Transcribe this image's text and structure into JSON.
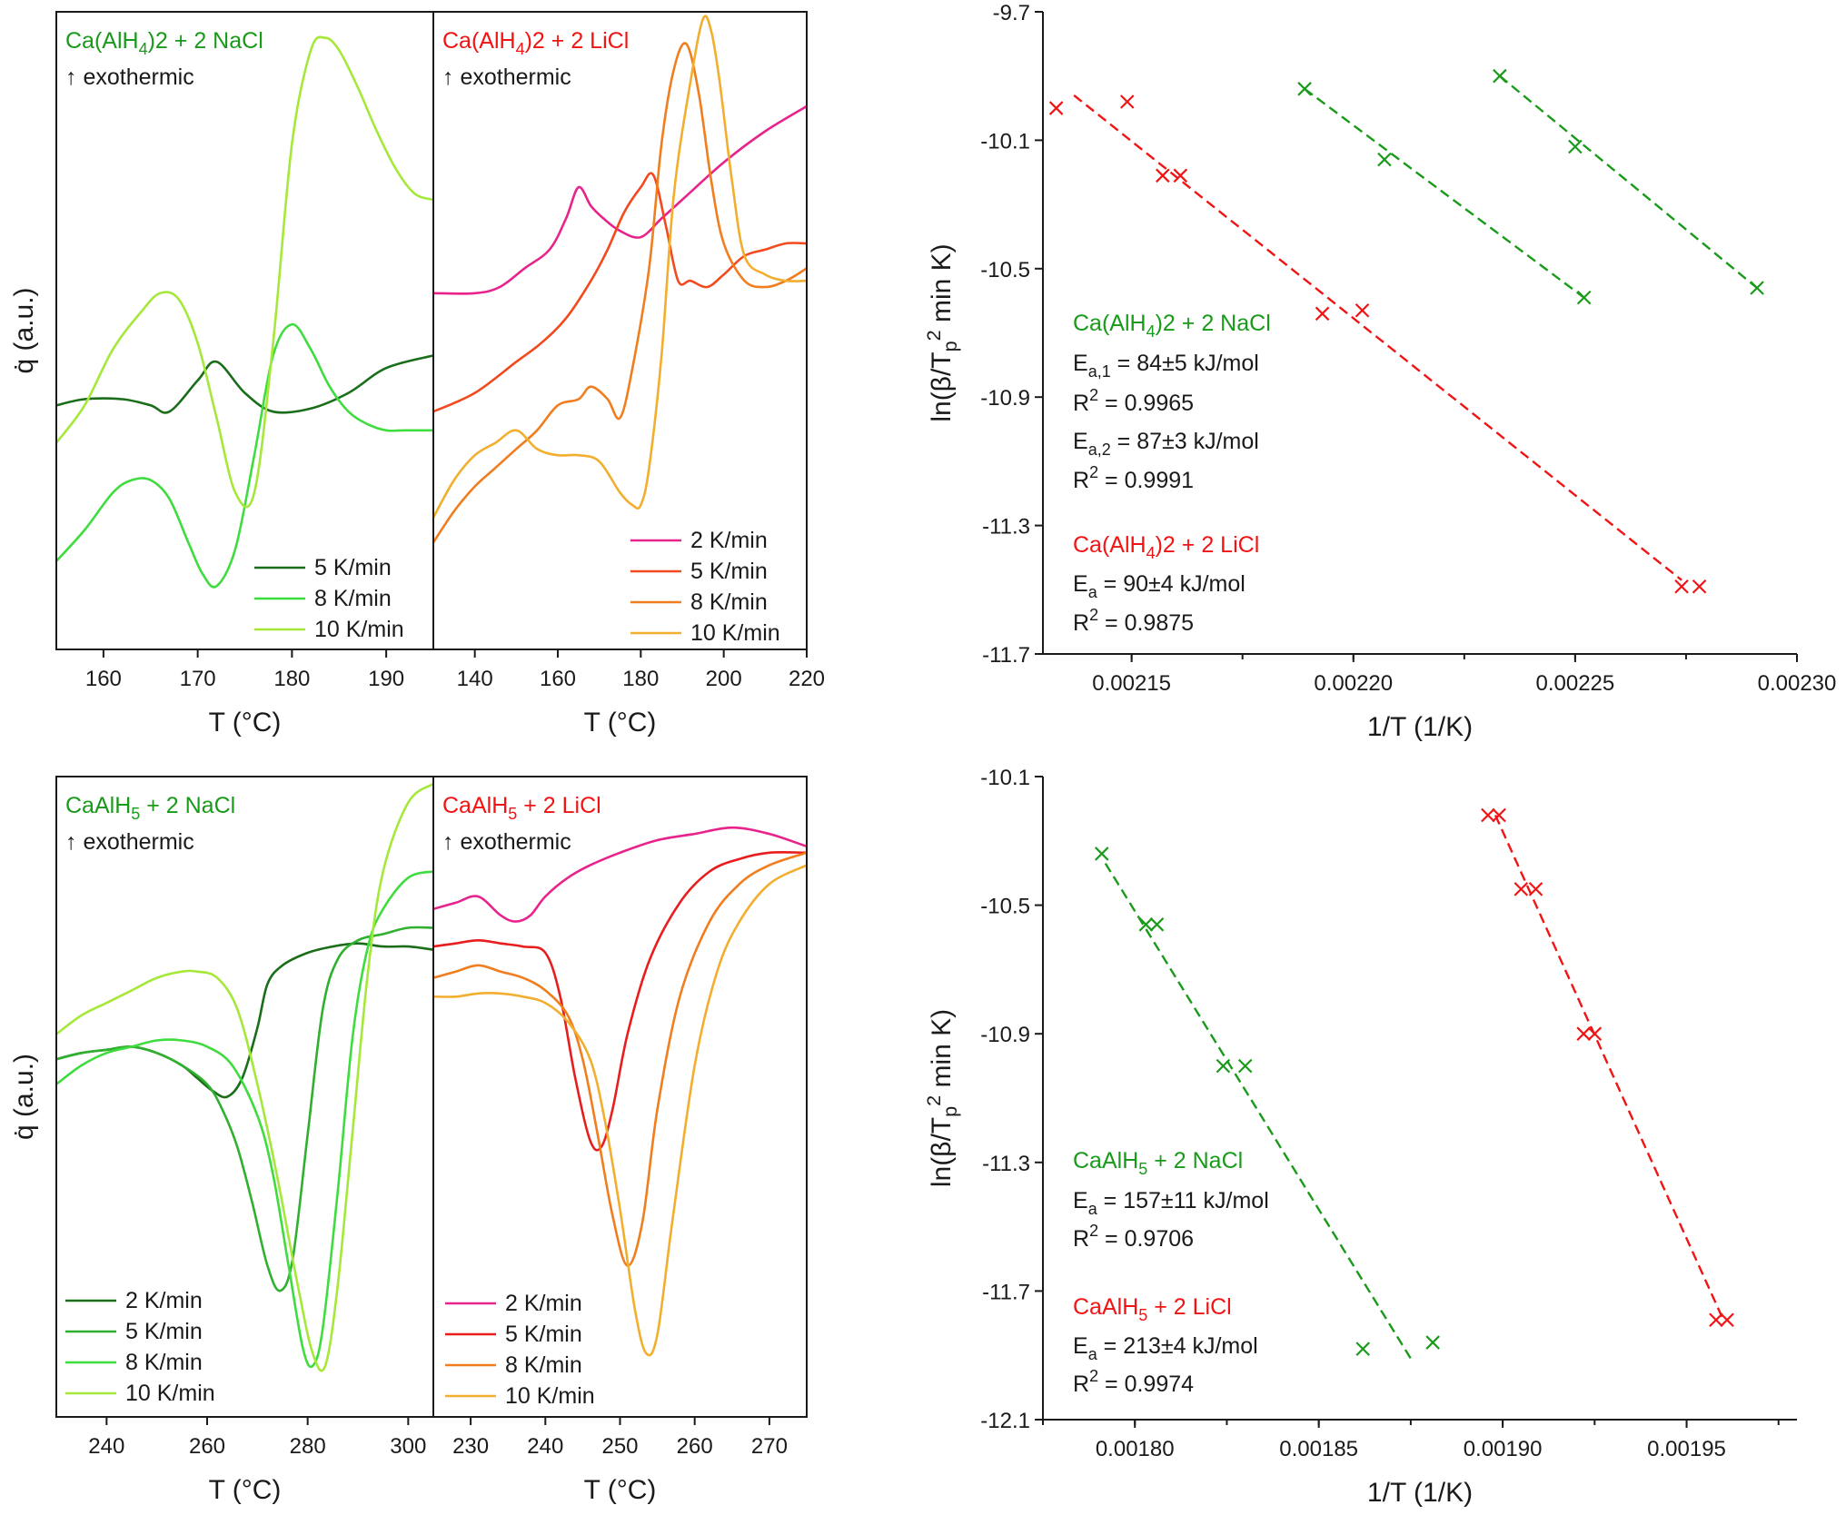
{
  "colors": {
    "green": "#1a9a1a",
    "red": "#f01414",
    "dark_green": "#1a6e1a",
    "mid_green": "#2fb02f",
    "bright_green": "#3fdc3f",
    "light_green": "#a6e83a",
    "magenta": "#e8238c",
    "orange": "#f07d1e",
    "gold": "#f2ae2e"
  },
  "chart_data": [
    {
      "id": "top-left-nacl",
      "type": "line",
      "title": "Ca(AlH4)2 + 2 NaCl",
      "annotation": "↑ exothermic",
      "xlabel": "T (°C)",
      "ylabel": "q̇ (a.u.)",
      "xlim": [
        155,
        195
      ],
      "ylim": [
        0,
        1
      ],
      "xticks": [
        160,
        170,
        180,
        190
      ],
      "series": [
        {
          "name": "5 K/min",
          "color": "#1a6e1a",
          "x": [
            155,
            158,
            162,
            165,
            167,
            170,
            172,
            175,
            178,
            182,
            186,
            190,
            195
          ],
          "y": [
            0.38,
            0.39,
            0.39,
            0.38,
            0.37,
            0.42,
            0.45,
            0.4,
            0.37,
            0.375,
            0.4,
            0.44,
            0.46
          ]
        },
        {
          "name": "8 K/min",
          "color": "#3fdc3f",
          "x": [
            155,
            158,
            161,
            163,
            165,
            167,
            169,
            170.5,
            172,
            174,
            176,
            178,
            180,
            182,
            184,
            186,
            188,
            190,
            192,
            195
          ],
          "y": [
            0.13,
            0.18,
            0.24,
            0.26,
            0.26,
            0.23,
            0.16,
            0.11,
            0.09,
            0.15,
            0.3,
            0.46,
            0.51,
            0.47,
            0.41,
            0.37,
            0.35,
            0.34,
            0.34,
            0.34
          ]
        },
        {
          "name": "10 K/min",
          "color": "#a6e83a",
          "x": [
            155,
            158,
            161,
            164,
            166,
            168,
            170,
            172,
            174,
            176,
            178,
            180,
            182,
            183.5,
            185,
            187,
            189,
            191,
            193,
            195
          ],
          "y": [
            0.32,
            0.38,
            0.47,
            0.53,
            0.56,
            0.55,
            0.48,
            0.36,
            0.24,
            0.24,
            0.48,
            0.8,
            0.95,
            0.97,
            0.95,
            0.89,
            0.82,
            0.76,
            0.72,
            0.71
          ]
        }
      ]
    },
    {
      "id": "top-mid-licl",
      "type": "line",
      "title": "Ca(AlH4)2 + 2 LiCl",
      "annotation": "↑ exothermic",
      "xlabel": "T (°C)",
      "xlim": [
        130,
        220
      ],
      "ylim": [
        0,
        1
      ],
      "xticks": [
        140,
        160,
        180,
        200,
        220
      ],
      "series": [
        {
          "name": "2 K/min",
          "color": "#e8238c",
          "x": [
            130,
            140,
            146,
            152,
            158,
            162,
            165,
            168,
            171,
            175,
            180,
            185,
            190,
            200,
            210,
            220
          ],
          "y": [
            0.56,
            0.56,
            0.57,
            0.6,
            0.63,
            0.68,
            0.73,
            0.7,
            0.68,
            0.66,
            0.65,
            0.68,
            0.71,
            0.77,
            0.82,
            0.86
          ]
        },
        {
          "name": "5 K/min",
          "color": "#f24a1e",
          "x": [
            130,
            140,
            150,
            156,
            162,
            168,
            172,
            176,
            180,
            183,
            186,
            189,
            192,
            196,
            200,
            205,
            210,
            215,
            220
          ],
          "y": [
            0.37,
            0.4,
            0.45,
            0.48,
            0.52,
            0.58,
            0.63,
            0.69,
            0.73,
            0.75,
            0.67,
            0.58,
            0.58,
            0.57,
            0.59,
            0.62,
            0.63,
            0.64,
            0.64
          ]
        },
        {
          "name": "8 K/min",
          "color": "#f07d1e",
          "x": [
            130,
            135,
            140,
            145,
            150,
            155,
            160,
            165,
            168,
            172,
            175,
            178,
            182,
            185,
            188,
            191,
            194,
            197,
            200,
            205,
            210,
            215,
            220
          ],
          "y": [
            0.16,
            0.21,
            0.25,
            0.28,
            0.31,
            0.34,
            0.38,
            0.39,
            0.41,
            0.39,
            0.36,
            0.44,
            0.6,
            0.8,
            0.92,
            0.96,
            0.88,
            0.74,
            0.64,
            0.58,
            0.57,
            0.58,
            0.6
          ]
        },
        {
          "name": "10 K/min",
          "color": "#f2ae2e",
          "x": [
            130,
            135,
            140,
            145,
            150,
            155,
            160,
            165,
            170,
            175,
            178,
            180,
            182,
            185,
            188,
            192,
            195,
            197,
            199,
            202,
            205,
            210,
            215,
            220
          ],
          "y": [
            0.2,
            0.26,
            0.3,
            0.32,
            0.34,
            0.31,
            0.3,
            0.3,
            0.29,
            0.24,
            0.22,
            0.22,
            0.28,
            0.46,
            0.72,
            0.9,
            1.0,
            0.98,
            0.9,
            0.74,
            0.62,
            0.59,
            0.58,
            0.58
          ]
        }
      ]
    },
    {
      "id": "top-right-kissinger",
      "type": "scatter",
      "xlabel": "1/T (1/K)",
      "ylabel": "ln(β/Tp² min K)",
      "xlim": [
        0.00213,
        0.0023
      ],
      "ylim": [
        -11.7,
        -9.7
      ],
      "xticks": [
        "0.00215",
        "0.00220",
        "0.00225",
        "0.00230"
      ],
      "yticks": [
        "-9.7",
        "-10.1",
        "-10.5",
        "-10.9",
        "-11.3",
        "-11.7"
      ],
      "series": [
        {
          "name": "Ca(AlH4)2 + 2 NaCl, peak 1",
          "color": "#1a9a1a",
          "points": [
            [
              0.002189,
              -9.94
            ],
            [
              0.002207,
              -10.16
            ],
            [
              0.002252,
              -10.59
            ]
          ],
          "fit": [
            [
              0.002189,
              -9.94
            ],
            [
              0.002252,
              -10.59
            ]
          ]
        },
        {
          "name": "Ca(AlH4)2 + 2 NaCl, peak 2",
          "color": "#1a9a1a",
          "points": [
            [
              0.002233,
              -9.9
            ],
            [
              0.00225,
              -10.12
            ],
            [
              0.002291,
              -10.56
            ]
          ],
          "fit": [
            [
              0.002233,
              -9.9
            ],
            [
              0.002291,
              -10.56
            ]
          ]
        },
        {
          "name": "Ca(AlH4)2 + 2 LiCl",
          "color": "#f01414",
          "points": [
            [
              0.002133,
              -10.0
            ],
            [
              0.002149,
              -9.98
            ],
            [
              0.002157,
              -10.21
            ],
            [
              0.002161,
              -10.21
            ],
            [
              0.002193,
              -10.64
            ],
            [
              0.002202,
              -10.63
            ],
            [
              0.002274,
              -11.49
            ],
            [
              0.002278,
              -11.49
            ]
          ],
          "fit": [
            [
              0.002137,
              -9.96
            ],
            [
              0.002274,
              -11.47
            ]
          ]
        }
      ],
      "legend": {
        "nacl_title": "Ca(AlH4)2 + 2 NaCl",
        "nacl_ea1": "Ea,1 = 84±5 kJ/mol",
        "nacl_r1": "R² = 0.9965",
        "nacl_ea2": "Ea,2 = 87±3 kJ/mol",
        "nacl_r2": "R² = 0.9991",
        "licl_title": "Ca(AlH4)2 + 2 LiCl",
        "licl_ea": "Ea = 90±4 kJ/mol",
        "licl_r": "R² = 0.9875"
      }
    },
    {
      "id": "bottom-left-nacl",
      "type": "line",
      "title": "CaAlH5 + 2 NaCl",
      "annotation": "↑ exothermic",
      "xlabel": "T (°C)",
      "ylabel": "q̇ (a.u.)",
      "xlim": [
        230,
        305
      ],
      "ylim": [
        0,
        1
      ],
      "xticks": [
        240,
        260,
        280,
        300
      ],
      "series": [
        {
          "name": "2 K/min",
          "color": "#1a6e1a",
          "x": [
            230,
            235,
            240,
            245,
            250,
            255,
            258,
            261,
            264,
            267,
            270,
            272,
            275,
            280,
            285,
            290,
            295,
            300,
            305
          ],
          "y": [
            0.56,
            0.57,
            0.575,
            0.58,
            0.57,
            0.55,
            0.53,
            0.51,
            0.5,
            0.53,
            0.61,
            0.68,
            0.71,
            0.73,
            0.74,
            0.745,
            0.74,
            0.74,
            0.735
          ]
        },
        {
          "name": "5 K/min",
          "color": "#2fb02f",
          "x": [
            230,
            235,
            240,
            245,
            250,
            255,
            260,
            263,
            266,
            269,
            272,
            274.5,
            277,
            280,
            283,
            286,
            290,
            295,
            300,
            305
          ],
          "y": [
            0.56,
            0.57,
            0.575,
            0.58,
            0.57,
            0.55,
            0.52,
            0.48,
            0.42,
            0.33,
            0.23,
            0.19,
            0.24,
            0.44,
            0.64,
            0.72,
            0.75,
            0.76,
            0.77,
            0.77
          ]
        },
        {
          "name": "8 K/min",
          "color": "#3fdc3f",
          "x": [
            230,
            235,
            240,
            245,
            250,
            255,
            260,
            265,
            270,
            273,
            276,
            279,
            281,
            283,
            286,
            289,
            292,
            295,
            300,
            305
          ],
          "y": [
            0.52,
            0.55,
            0.57,
            0.58,
            0.59,
            0.59,
            0.58,
            0.55,
            0.47,
            0.38,
            0.24,
            0.1,
            0.07,
            0.13,
            0.35,
            0.6,
            0.74,
            0.8,
            0.85,
            0.86
          ]
        },
        {
          "name": "10 K/min",
          "color": "#a6e83a",
          "x": [
            230,
            235,
            240,
            245,
            250,
            255,
            258,
            262,
            266,
            270,
            274,
            278,
            281,
            283.5,
            286,
            289,
            292,
            295,
            300,
            305
          ],
          "y": [
            0.6,
            0.63,
            0.65,
            0.67,
            0.69,
            0.7,
            0.7,
            0.69,
            0.64,
            0.52,
            0.37,
            0.2,
            0.09,
            0.07,
            0.2,
            0.45,
            0.7,
            0.86,
            0.97,
            1.0
          ]
        }
      ]
    },
    {
      "id": "bottom-mid-licl",
      "type": "line",
      "title": "CaAlH5 + 2 LiCl",
      "annotation": "↑ exothermic",
      "xlabel": "T (°C)",
      "xlim": [
        225,
        275
      ],
      "ylim": [
        0,
        1
      ],
      "xticks": [
        230,
        240,
        250,
        260,
        270
      ],
      "series": [
        {
          "name": "2 K/min",
          "color": "#e8238c",
          "x": [
            225,
            228,
            231,
            234,
            236,
            238,
            240,
            243,
            246,
            250,
            255,
            260,
            265,
            270,
            275
          ],
          "y": [
            0.8,
            0.81,
            0.82,
            0.79,
            0.78,
            0.79,
            0.82,
            0.85,
            0.87,
            0.89,
            0.91,
            0.92,
            0.93,
            0.92,
            0.9
          ]
        },
        {
          "name": "5 K/min",
          "color": "#e81e1e",
          "x": [
            225,
            228,
            231,
            234,
            237,
            240,
            242,
            244,
            246,
            247.5,
            249,
            251,
            254,
            258,
            262,
            266,
            270,
            275
          ],
          "y": [
            0.74,
            0.745,
            0.75,
            0.745,
            0.74,
            0.73,
            0.66,
            0.53,
            0.43,
            0.42,
            0.48,
            0.6,
            0.72,
            0.81,
            0.86,
            0.88,
            0.89,
            0.89
          ]
        },
        {
          "name": "8 K/min",
          "color": "#f07d1e",
          "x": [
            225,
            228,
            231,
            234,
            237,
            240,
            243,
            245,
            247,
            249,
            251,
            253,
            255,
            258,
            262,
            266,
            270,
            275
          ],
          "y": [
            0.69,
            0.7,
            0.71,
            0.7,
            0.69,
            0.67,
            0.63,
            0.56,
            0.44,
            0.31,
            0.23,
            0.3,
            0.48,
            0.66,
            0.78,
            0.84,
            0.87,
            0.89
          ]
        },
        {
          "name": "10 K/min",
          "color": "#f2ae2e",
          "x": [
            225,
            228,
            231,
            234,
            237,
            240,
            243,
            246,
            248,
            250,
            252,
            253.5,
            255,
            257,
            260,
            263,
            266,
            270,
            275
          ],
          "y": [
            0.66,
            0.66,
            0.665,
            0.665,
            0.66,
            0.65,
            0.62,
            0.56,
            0.46,
            0.32,
            0.16,
            0.09,
            0.12,
            0.3,
            0.55,
            0.7,
            0.78,
            0.84,
            0.87
          ]
        }
      ]
    },
    {
      "id": "bottom-right-kissinger",
      "type": "scatter",
      "xlabel": "1/T (1/K)",
      "ylabel": "ln(β/Tp² min K)",
      "xlim": [
        0.001775,
        0.00198
      ],
      "ylim": [
        -12.1,
        -10.1
      ],
      "xticks": [
        "0.00180",
        "0.00185",
        "0.00190",
        "0.00195"
      ],
      "yticks": [
        "-10.1",
        "-10.5",
        "-10.9",
        "-11.3",
        "-11.7",
        "-12.1"
      ],
      "series": [
        {
          "name": "CaAlH5 + 2 NaCl",
          "color": "#1a9a1a",
          "points": [
            [
              0.001791,
              -10.34
            ],
            [
              0.001803,
              -10.56
            ],
            [
              0.001806,
              -10.56
            ],
            [
              0.001824,
              -11.0
            ],
            [
              0.00183,
              -11.0
            ],
            [
              0.001862,
              -11.88
            ],
            [
              0.001881,
              -11.86
            ]
          ],
          "fit": [
            [
              0.001792,
              -10.37
            ],
            [
              0.001875,
              -11.91
            ]
          ]
        },
        {
          "name": "CaAlH5 + 2 LiCl",
          "color": "#f01414",
          "points": [
            [
              0.001896,
              -10.22
            ],
            [
              0.001899,
              -10.22
            ],
            [
              0.001905,
              -10.45
            ],
            [
              0.001909,
              -10.45
            ],
            [
              0.001922,
              -10.9
            ],
            [
              0.001925,
              -10.9
            ],
            [
              0.001958,
              -11.79
            ],
            [
              0.001961,
              -11.79
            ]
          ],
          "fit": [
            [
              0.001898,
              -10.22
            ],
            [
              0.00196,
              -11.79
            ]
          ]
        }
      ],
      "legend": {
        "nacl_title": "CaAlH5 + 2 NaCl",
        "nacl_ea": "Ea = 157±11 kJ/mol",
        "nacl_r": "R² = 0.9706",
        "licl_title": "CaAlH5 + 2 LiCl",
        "licl_ea": "Ea = 213±4 kJ/mol",
        "licl_r": "R² = 0.9974"
      }
    }
  ]
}
